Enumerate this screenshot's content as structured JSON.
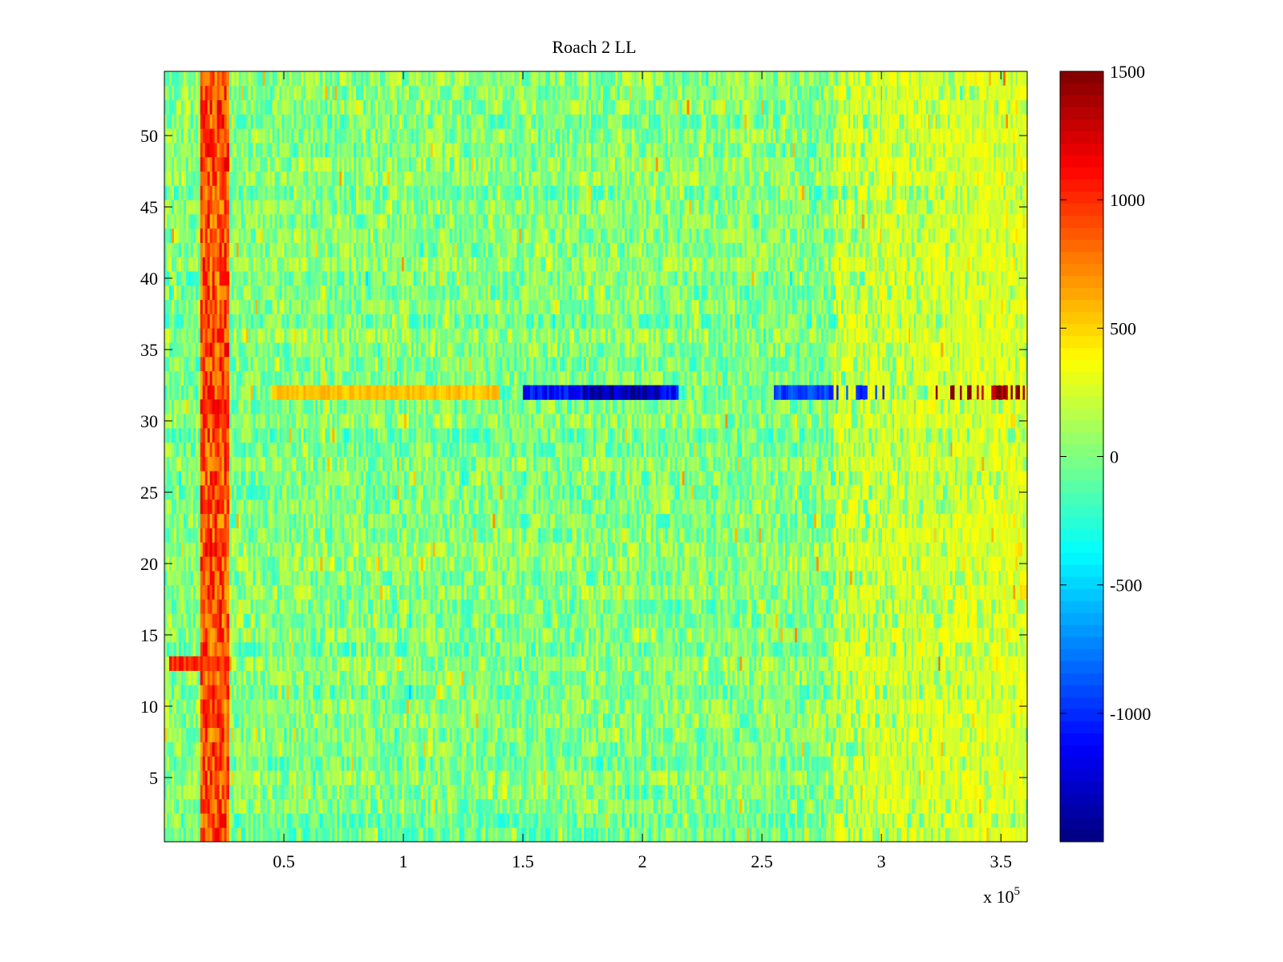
{
  "chart_data": {
    "type": "heatmap",
    "title": "Roach 2 LL",
    "xlabel": "",
    "ylabel": "",
    "x_exponent_label": "x 10",
    "x_exponent_power": "5",
    "xlim": [
      0,
      361000
    ],
    "ylim": [
      0.5,
      54.5
    ],
    "x_ticks": [
      50000,
      100000,
      150000,
      200000,
      250000,
      300000,
      350000
    ],
    "x_tick_labels": [
      "0.5",
      "1",
      "1.5",
      "2",
      "2.5",
      "3",
      "3.5"
    ],
    "y_ticks": [
      5,
      10,
      15,
      20,
      25,
      30,
      35,
      40,
      45,
      50
    ],
    "y_tick_labels": [
      "5",
      "10",
      "15",
      "20",
      "25",
      "30",
      "35",
      "40",
      "45",
      "50"
    ],
    "rows": 54,
    "grid": false,
    "colormap": "jet",
    "clim": [
      -1500,
      1500
    ],
    "colorbar": {
      "ticks": [
        1500,
        1000,
        500,
        0,
        -500,
        -1000
      ],
      "tick_labels": [
        "1500",
        "1000",
        "500",
        "0",
        "-500",
        "-1000"
      ],
      "location": "right"
    },
    "features": [
      {
        "label": "vertical band",
        "x_range": [
          15000,
          27000
        ],
        "y_range": [
          0.5,
          54.5
        ],
        "value": 900
      },
      {
        "label": "row 31 left",
        "x_range": [
          15000,
          27000
        ],
        "y_range": [
          30.5,
          31.5
        ],
        "value": 1050
      },
      {
        "label": "row 13 left",
        "x_range": [
          2000,
          27000
        ],
        "y_range": [
          12.5,
          13.5
        ],
        "value": 1000
      },
      {
        "label": "row 32 warm segment",
        "x_range": [
          45000,
          140000
        ],
        "y_range": [
          31.5,
          32.5
        ],
        "value": 550
      },
      {
        "label": "row 32 cold segment",
        "x_range": [
          150000,
          215000
        ],
        "y_range": [
          31.5,
          32.5
        ],
        "value": -1100
      },
      {
        "label": "row 32 cold core",
        "x_range": [
          175000,
          207000
        ],
        "y_range": [
          31.5,
          32.5
        ],
        "value": -1350
      },
      {
        "label": "row 32 cold segment",
        "x_range": [
          255000,
          302000
        ],
        "y_range": [
          31.5,
          32.5
        ],
        "value": -950
      },
      {
        "label": "row 32 hot segment",
        "x_range": [
          322000,
          361000
        ],
        "y_range": [
          31.5,
          32.5
        ],
        "value": 1450
      },
      {
        "label": "right warm region",
        "x_range": [
          280000,
          361000
        ],
        "y_range": [
          0.5,
          54.5
        ],
        "value": 300
      }
    ]
  }
}
